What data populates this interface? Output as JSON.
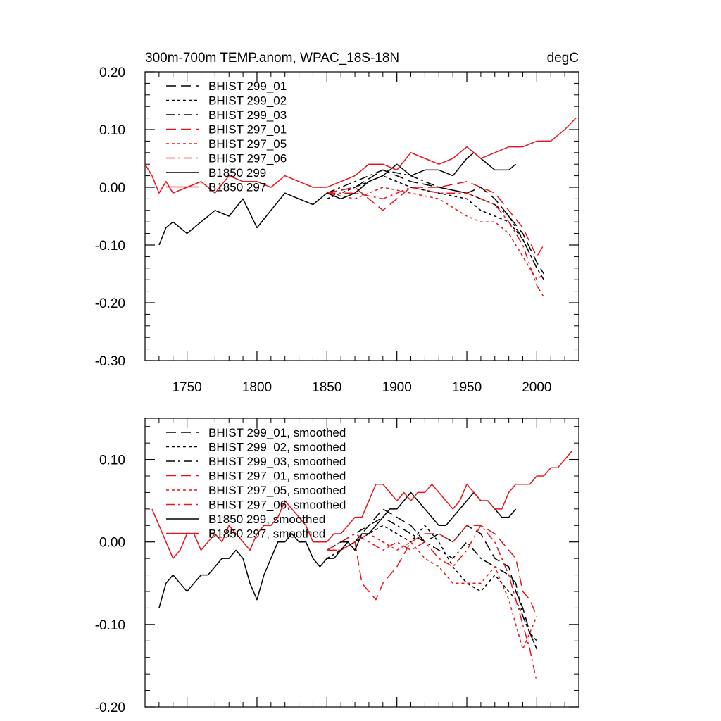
{
  "chart_data": [
    {
      "type": "line",
      "title": "300m-700m TEMP.anom, WPAC_18S-18N",
      "units_label": "degC",
      "xlim": [
        1720,
        2030
      ],
      "ylim": [
        -0.3,
        0.2
      ],
      "x_ticks": [
        1750,
        1800,
        1850,
        1900,
        1950,
        2000
      ],
      "x_tick_labels": [
        "1750",
        "1800",
        "1850",
        "1900",
        "1950",
        "2000"
      ],
      "y_ticks": [
        -0.3,
        -0.2,
        -0.1,
        0.0,
        0.1,
        0.2
      ],
      "y_tick_labels": [
        "-0.30",
        "-0.20",
        "-0.10",
        "0.00",
        "0.10",
        "0.20"
      ],
      "legend_position": "top-left",
      "series": [
        {
          "name": "BHIST 299_01",
          "color": "#000000",
          "dash": "dash",
          "x": [
            1850,
            1870,
            1890,
            1910,
            1930,
            1950,
            1960,
            1970,
            1980,
            1990,
            2000,
            2005
          ],
          "values": [
            -0.01,
            0.0,
            0.03,
            0.01,
            0.0,
            -0.01,
            0.0,
            -0.02,
            -0.05,
            -0.08,
            -0.13,
            -0.15
          ]
        },
        {
          "name": "BHIST 299_02",
          "color": "#000000",
          "dash": "dot",
          "x": [
            1850,
            1870,
            1890,
            1910,
            1930,
            1950,
            1960,
            1970,
            1980,
            1990,
            2000,
            2005
          ],
          "values": [
            -0.02,
            0.0,
            0.02,
            0.0,
            -0.01,
            -0.02,
            -0.04,
            -0.05,
            -0.06,
            -0.09,
            -0.14,
            -0.16
          ]
        },
        {
          "name": "BHIST 299_03",
          "color": "#000000",
          "dash": "dashdot",
          "x": [
            1850,
            1870,
            1890,
            1910,
            1930,
            1950,
            1960,
            1970,
            1980,
            1990,
            2000,
            2005
          ],
          "values": [
            -0.01,
            0.01,
            0.03,
            0.02,
            0.0,
            -0.01,
            -0.02,
            -0.03,
            -0.05,
            -0.09,
            -0.14,
            -0.16
          ]
        },
        {
          "name": "BHIST 297_01",
          "color": "#e8141c",
          "dash": "dash",
          "x": [
            1850,
            1870,
            1890,
            1910,
            1930,
            1950,
            1960,
            1970,
            1980,
            1990,
            2000,
            2005
          ],
          "values": [
            -0.01,
            0.0,
            -0.04,
            0.0,
            0.0,
            0.01,
            0.0,
            -0.01,
            -0.04,
            -0.07,
            -0.12,
            -0.1
          ]
        },
        {
          "name": "BHIST 297_05",
          "color": "#e8141c",
          "dash": "dot",
          "x": [
            1850,
            1870,
            1890,
            1910,
            1930,
            1950,
            1960,
            1970,
            1980,
            1990,
            2000,
            2005
          ],
          "values": [
            -0.01,
            -0.02,
            0.0,
            -0.01,
            -0.02,
            -0.05,
            -0.06,
            -0.06,
            -0.08,
            -0.12,
            -0.16,
            -0.15
          ]
        },
        {
          "name": "BHIST 297_06",
          "color": "#e8141c",
          "dash": "dashdot",
          "x": [
            1850,
            1870,
            1890,
            1910,
            1930,
            1950,
            1960,
            1970,
            1980,
            1990,
            2000,
            2005
          ],
          "values": [
            -0.01,
            -0.01,
            -0.02,
            0.0,
            -0.01,
            -0.01,
            -0.02,
            -0.03,
            -0.06,
            -0.1,
            -0.17,
            -0.19
          ]
        },
        {
          "name": "B1850 299",
          "color": "#000000",
          "dash": "solid",
          "x": [
            1730,
            1735,
            1740,
            1750,
            1760,
            1770,
            1780,
            1790,
            1800,
            1810,
            1820,
            1830,
            1840,
            1850,
            1860,
            1870,
            1880,
            1890,
            1900,
            1910,
            1920,
            1930,
            1940,
            1950,
            1955,
            1960,
            1970,
            1980,
            1985
          ],
          "values": [
            -0.1,
            -0.07,
            -0.06,
            -0.08,
            -0.06,
            -0.04,
            -0.05,
            -0.02,
            -0.07,
            -0.04,
            -0.01,
            -0.02,
            -0.03,
            -0.01,
            -0.02,
            -0.01,
            0.01,
            0.02,
            0.04,
            0.02,
            0.03,
            0.03,
            0.02,
            0.05,
            0.06,
            0.05,
            0.03,
            0.03,
            0.04
          ]
        },
        {
          "name": "B1850 297",
          "color": "#e8141c",
          "dash": "solid",
          "x": [
            1720,
            1725,
            1730,
            1735,
            1740,
            1750,
            1760,
            1770,
            1780,
            1790,
            1800,
            1810,
            1820,
            1830,
            1840,
            1850,
            1860,
            1870,
            1880,
            1890,
            1900,
            1910,
            1920,
            1930,
            1940,
            1950,
            1960,
            1970,
            1980,
            1990,
            2000,
            2010,
            2020,
            2028
          ],
          "values": [
            0.04,
            0.02,
            -0.01,
            0.01,
            -0.01,
            0.0,
            0.01,
            -0.01,
            0.02,
            0.01,
            0.01,
            0.0,
            0.02,
            0.01,
            0.0,
            0.0,
            0.01,
            0.02,
            0.04,
            0.04,
            0.03,
            0.06,
            0.05,
            0.04,
            0.05,
            0.07,
            0.05,
            0.06,
            0.07,
            0.07,
            0.08,
            0.08,
            0.1,
            0.12
          ]
        }
      ]
    },
    {
      "type": "line",
      "title": "",
      "xlim": [
        1720,
        2030
      ],
      "ylim": [
        -0.2,
        0.15
      ],
      "x_ticks": [
        1750,
        1800,
        1850,
        1900,
        1950,
        2000
      ],
      "y_ticks": [
        -0.2,
        -0.1,
        0.0,
        0.1
      ],
      "y_tick_labels": [
        "-0.20",
        "-0.10",
        "0.00",
        "0.10"
      ],
      "legend_position": "top-left",
      "series": [
        {
          "name": "BHIST 299_01, smoothed",
          "color": "#000000",
          "dash": "dash",
          "x": [
            1850,
            1860,
            1870,
            1880,
            1890,
            1900,
            1910,
            1920,
            1930,
            1940,
            1950,
            1960,
            1970,
            1980,
            1985,
            1990,
            1995,
            2000
          ],
          "values": [
            -0.01,
            0.0,
            0.0,
            0.02,
            0.04,
            0.03,
            0.02,
            0.0,
            0.01,
            0.0,
            0.02,
            0.01,
            -0.02,
            -0.03,
            -0.06,
            -0.08,
            -0.11,
            -0.13
          ]
        },
        {
          "name": "BHIST 299_02, smoothed",
          "color": "#000000",
          "dash": "dot",
          "x": [
            1850,
            1860,
            1870,
            1880,
            1890,
            1900,
            1910,
            1920,
            1930,
            1940,
            1950,
            1960,
            1970,
            1980,
            1985,
            1990,
            1995,
            2000
          ],
          "values": [
            -0.02,
            -0.01,
            0.0,
            0.01,
            0.02,
            0.01,
            0.0,
            0.02,
            0.0,
            -0.03,
            -0.05,
            -0.06,
            -0.04,
            -0.06,
            -0.07,
            -0.09,
            -0.11,
            -0.12
          ]
        },
        {
          "name": "BHIST 299_03, smoothed",
          "color": "#000000",
          "dash": "dashdot",
          "x": [
            1850,
            1860,
            1870,
            1880,
            1890,
            1900,
            1910,
            1920,
            1930,
            1940,
            1950,
            1960,
            1970,
            1980,
            1985,
            1990,
            1995,
            2000
          ],
          "values": [
            -0.01,
            0.0,
            0.01,
            0.02,
            0.03,
            0.02,
            0.01,
            0.0,
            -0.01,
            -0.02,
            0.0,
            -0.02,
            -0.03,
            -0.04,
            -0.05,
            -0.09,
            -0.11,
            -0.13
          ]
        },
        {
          "name": "BHIST 297_01, smoothed",
          "color": "#e8141c",
          "dash": "dash",
          "x": [
            1850,
            1860,
            1870,
            1875,
            1880,
            1885,
            1890,
            1900,
            1910,
            1920,
            1930,
            1940,
            1950,
            1960,
            1970,
            1980,
            1985,
            1990,
            1995,
            2000
          ],
          "values": [
            -0.01,
            -0.01,
            0.0,
            -0.05,
            -0.06,
            -0.07,
            -0.05,
            -0.03,
            0.0,
            0.01,
            0.01,
            0.0,
            0.02,
            0.02,
            0.01,
            -0.01,
            -0.02,
            -0.06,
            -0.07,
            -0.09
          ]
        },
        {
          "name": "BHIST 297_05, smoothed",
          "color": "#e8141c",
          "dash": "dot",
          "x": [
            1850,
            1860,
            1870,
            1880,
            1890,
            1900,
            1910,
            1920,
            1930,
            1940,
            1950,
            1960,
            1970,
            1980,
            1985,
            1990,
            1995,
            2000
          ],
          "values": [
            -0.01,
            -0.01,
            0.0,
            0.01,
            0.0,
            -0.01,
            0.0,
            -0.02,
            -0.03,
            -0.05,
            -0.05,
            -0.05,
            -0.03,
            -0.07,
            -0.1,
            -0.13,
            -0.11,
            -0.09
          ]
        },
        {
          "name": "BHIST 297_06, smoothed",
          "color": "#e8141c",
          "dash": "dashdot",
          "x": [
            1850,
            1860,
            1870,
            1880,
            1890,
            1900,
            1910,
            1920,
            1930,
            1940,
            1950,
            1960,
            1970,
            1980,
            1985,
            1990,
            1995,
            2000
          ],
          "values": [
            -0.01,
            0.0,
            0.01,
            0.0,
            -0.01,
            0.0,
            -0.01,
            0.0,
            -0.02,
            -0.03,
            -0.01,
            0.02,
            0.0,
            -0.04,
            -0.07,
            -0.1,
            -0.13,
            -0.17
          ]
        },
        {
          "name": "B1850 299, smoothed",
          "color": "#000000",
          "dash": "solid",
          "x": [
            1730,
            1735,
            1740,
            1745,
            1750,
            1755,
            1760,
            1765,
            1770,
            1775,
            1780,
            1785,
            1790,
            1795,
            1800,
            1805,
            1810,
            1815,
            1820,
            1825,
            1830,
            1835,
            1840,
            1845,
            1850,
            1855,
            1860,
            1865,
            1870,
            1875,
            1880,
            1885,
            1890,
            1895,
            1900,
            1905,
            1910,
            1915,
            1920,
            1925,
            1930,
            1935,
            1940,
            1945,
            1950,
            1955,
            1960,
            1965,
            1970,
            1975,
            1980,
            1985
          ],
          "values": [
            -0.08,
            -0.05,
            -0.04,
            -0.05,
            -0.06,
            -0.05,
            -0.04,
            -0.04,
            -0.03,
            -0.02,
            -0.02,
            -0.01,
            -0.02,
            -0.05,
            -0.07,
            -0.04,
            -0.02,
            0.0,
            0.0,
            0.01,
            0.0,
            0.0,
            -0.02,
            -0.03,
            -0.02,
            -0.02,
            -0.01,
            0.0,
            -0.01,
            0.01,
            0.01,
            0.02,
            0.03,
            0.04,
            0.04,
            0.05,
            0.06,
            0.05,
            0.04,
            0.03,
            0.02,
            0.02,
            0.03,
            0.04,
            0.05,
            0.06,
            0.05,
            0.05,
            0.04,
            0.03,
            0.03,
            0.04
          ]
        },
        {
          "name": "B1850 297, smoothed",
          "color": "#e8141c",
          "dash": "solid",
          "x": [
            1725,
            1730,
            1735,
            1740,
            1745,
            1750,
            1755,
            1760,
            1765,
            1770,
            1775,
            1780,
            1785,
            1790,
            1795,
            1800,
            1805,
            1810,
            1815,
            1820,
            1825,
            1830,
            1835,
            1840,
            1845,
            1850,
            1855,
            1860,
            1865,
            1870,
            1875,
            1880,
            1885,
            1890,
            1895,
            1900,
            1905,
            1910,
            1915,
            1920,
            1925,
            1930,
            1935,
            1940,
            1945,
            1950,
            1955,
            1960,
            1965,
            1970,
            1975,
            1980,
            1985,
            1990,
            1995,
            2000,
            2005,
            2010,
            2015,
            2020,
            2025
          ],
          "values": [
            0.04,
            0.02,
            0.0,
            -0.02,
            -0.01,
            0.01,
            0.01,
            -0.01,
            0.0,
            0.01,
            0.0,
            0.02,
            0.01,
            0.0,
            -0.01,
            0.01,
            0.02,
            0.02,
            0.03,
            0.05,
            0.04,
            0.03,
            0.02,
            0.0,
            0.0,
            0.0,
            0.01,
            0.01,
            0.02,
            0.03,
            0.03,
            0.05,
            0.07,
            0.07,
            0.06,
            0.05,
            0.06,
            0.05,
            0.06,
            0.06,
            0.07,
            0.06,
            0.05,
            0.04,
            0.05,
            0.07,
            0.06,
            0.05,
            0.05,
            0.04,
            0.04,
            0.06,
            0.07,
            0.07,
            0.07,
            0.08,
            0.08,
            0.09,
            0.09,
            0.1,
            0.11
          ]
        }
      ]
    }
  ]
}
